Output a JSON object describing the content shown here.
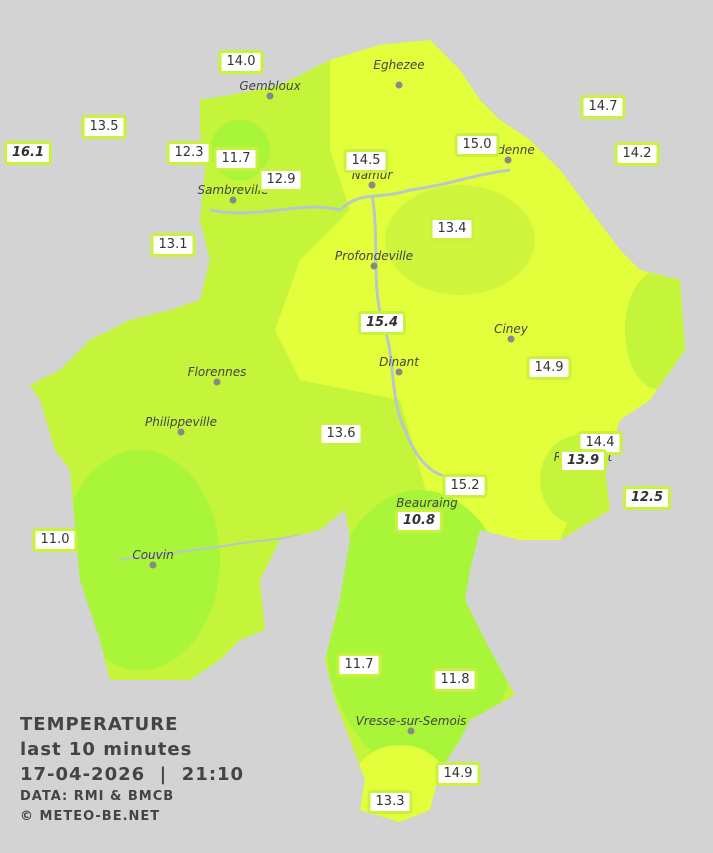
{
  "map": {
    "stations": [
      {
        "value": "14.0"
      },
      {
        "value": "13.5"
      },
      {
        "value": "16.1",
        "italic": true
      },
      {
        "value": "12.3"
      },
      {
        "value": "11.7"
      },
      {
        "value": "12.9"
      },
      {
        "value": "14.5"
      },
      {
        "value": "15.0"
      },
      {
        "value": "14.7"
      },
      {
        "value": "14.2"
      },
      {
        "value": "13.1"
      },
      {
        "value": "13.4"
      },
      {
        "value": "15.4",
        "italic": true
      },
      {
        "value": "14.9"
      },
      {
        "value": "13.6"
      },
      {
        "value": "14.4"
      },
      {
        "value": "13.9",
        "italic": true
      },
      {
        "value": "15.2"
      },
      {
        "value": "12.5",
        "italic": true
      },
      {
        "value": "10.8",
        "italic": true
      },
      {
        "value": "11.0"
      },
      {
        "value": "11.7"
      },
      {
        "value": "11.8"
      },
      {
        "value": "14.9"
      },
      {
        "value": "13.3"
      }
    ],
    "places": [
      "Eghezee",
      "Gembloux",
      "Andenne",
      "Namur",
      "Sambreville",
      "Profondeville",
      "Ciney",
      "Dinant",
      "Florennes",
      "Philippeville",
      "Rochefort",
      "Beauraing",
      "Couvin",
      "Vresse-sur-Semois"
    ],
    "legend": {
      "title": "TEMPERATURE",
      "period": "last 10 minutes",
      "timestamp": "17-04-2026  |  21:10",
      "source": "DATA: RMI & BMCB",
      "copyright": "© METEO-BE.NET"
    }
  }
}
